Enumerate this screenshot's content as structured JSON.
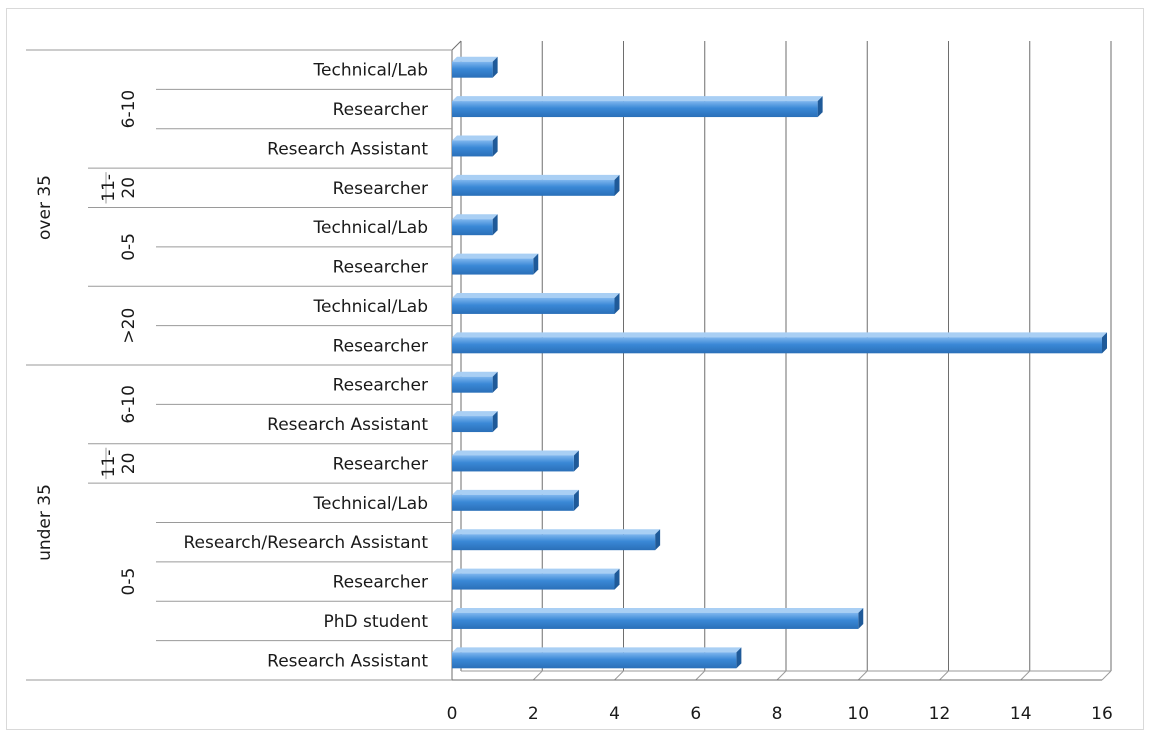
{
  "chart_data": {
    "type": "bar",
    "orientation": "horizontal",
    "xlim": [
      0,
      16
    ],
    "x_ticks": [
      "0",
      "2",
      "4",
      "6",
      "8",
      "10",
      "12",
      "14",
      "16"
    ],
    "grid": true,
    "legend": "none",
    "bar_color": "#3a88d6",
    "categories": [
      {
        "age": "over 35",
        "tenure": "6-10",
        "role": "Technical/Lab",
        "value": 1
      },
      {
        "age": "over 35",
        "tenure": "6-10",
        "role": "Researcher",
        "value": 9
      },
      {
        "age": "over 35",
        "tenure": "6-10",
        "role": "Research Assistant",
        "value": 1
      },
      {
        "age": "over 35",
        "tenure": "11-20",
        "role": "Researcher",
        "value": 4
      },
      {
        "age": "over 35",
        "tenure": "0-5",
        "role": "Technical/Lab",
        "value": 1
      },
      {
        "age": "over 35",
        "tenure": "0-5",
        "role": "Researcher",
        "value": 2
      },
      {
        "age": "over 35",
        "tenure": ">20",
        "role": "Technical/Lab",
        "value": 4
      },
      {
        "age": "over 35",
        "tenure": ">20",
        "role": "Researcher",
        "value": 16
      },
      {
        "age": "under 35",
        "tenure": "6-10",
        "role": "Researcher",
        "value": 1
      },
      {
        "age": "under 35",
        "tenure": "6-10",
        "role": "Research Assistant",
        "value": 1
      },
      {
        "age": "under 35",
        "tenure": "11-20",
        "role": "Researcher",
        "value": 3
      },
      {
        "age": "under 35",
        "tenure": "0-5",
        "role": "Technical/Lab",
        "value": 3
      },
      {
        "age": "under 35",
        "tenure": "0-5",
        "role": "Research/Research Assistant",
        "value": 5
      },
      {
        "age": "under 35",
        "tenure": "0-5",
        "role": "Researcher",
        "value": 4
      },
      {
        "age": "under 35",
        "tenure": "0-5",
        "role": "PhD student",
        "value": 10
      },
      {
        "age": "under 35",
        "tenure": "0-5",
        "role": "Research Assistant",
        "value": 7
      }
    ],
    "tenure_groups": [
      {
        "label": "6-10",
        "age": "over 35"
      },
      {
        "label": "11-20",
        "age": "over 35"
      },
      {
        "label": "0-5",
        "age": "over 35"
      },
      {
        "label": ">20",
        "age": "over 35"
      },
      {
        "label": "6-10",
        "age": "under 35"
      },
      {
        "label": "11-20",
        "age": "under 35"
      },
      {
        "label": "0-5",
        "age": "under 35"
      }
    ],
    "age_groups": [
      {
        "label": "over 35"
      },
      {
        "label": "under 35"
      }
    ]
  }
}
